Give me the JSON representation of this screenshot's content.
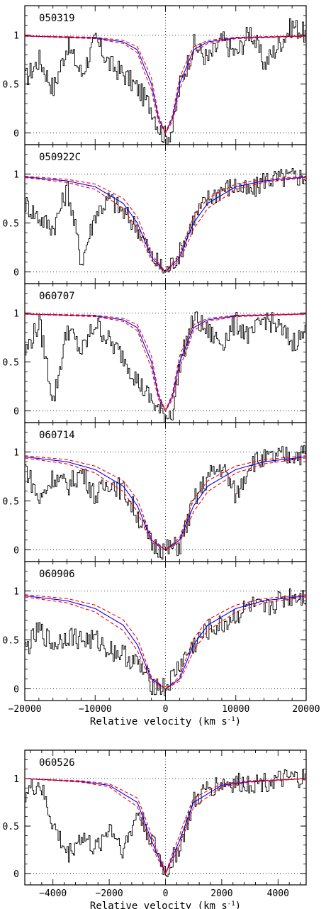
{
  "colors": {
    "data": "#000000",
    "fit": "#0000ff",
    "err": "#ff0000",
    "guide": "#000000"
  },
  "chart_data": [
    {
      "type": "line",
      "title": "050319",
      "xlabel": "",
      "ylabel": "",
      "xlim": [
        -20000,
        20000
      ],
      "ylim": [
        -0.12,
        1.3
      ],
      "xticks": [],
      "yticks": [
        0,
        0.5,
        1
      ],
      "x_tick_labels": [],
      "y_tick_labels": [
        "0",
        "0.5",
        "1"
      ],
      "grid": false,
      "series": [
        {
          "role": "data",
          "x": [
            -20000,
            -18000,
            -16000,
            -14000,
            -12000,
            -10000,
            -8000,
            -6000,
            -4000,
            -2000,
            -1000,
            0,
            1000,
            2000,
            4000,
            6000,
            8000,
            10000,
            12000,
            14000,
            16000,
            18000,
            20000
          ],
          "y": [
            0.55,
            0.75,
            0.45,
            0.9,
            0.6,
            0.95,
            0.7,
            0.6,
            0.45,
            0.25,
            0.05,
            -0.05,
            0.05,
            0.5,
            0.9,
            0.75,
            0.95,
            0.8,
            1.05,
            0.7,
            0.9,
            1.1,
            1.0
          ]
        },
        {
          "role": "fit",
          "x": [
            -20000,
            -10000,
            -6000,
            -4000,
            -2000,
            -1000,
            0,
            1000,
            2000,
            4000,
            6000,
            10000,
            20000
          ],
          "y": [
            0.99,
            0.97,
            0.93,
            0.85,
            0.5,
            0.15,
            0.0,
            0.15,
            0.5,
            0.85,
            0.93,
            0.97,
            0.99
          ]
        }
      ]
    },
    {
      "type": "line",
      "title": "050922C",
      "xlabel": "",
      "ylabel": "",
      "xlim": [
        -20000,
        20000
      ],
      "ylim": [
        -0.12,
        1.3
      ],
      "xticks": [],
      "yticks": [
        0,
        0.5,
        1
      ],
      "x_tick_labels": [],
      "y_tick_labels": [
        "0",
        "0.5",
        "1"
      ],
      "grid": false,
      "series": [
        {
          "role": "data",
          "x": [
            -20000,
            -18000,
            -16000,
            -14000,
            -12000,
            -10000,
            -8000,
            -6000,
            -4000,
            -2000,
            0,
            2000,
            4000,
            6000,
            8000,
            10000,
            12000,
            14000,
            16000,
            18000,
            20000
          ],
          "y": [
            0.7,
            0.55,
            0.45,
            0.85,
            0.1,
            0.6,
            0.75,
            0.6,
            0.45,
            0.15,
            0.0,
            0.2,
            0.55,
            0.75,
            0.85,
            0.88,
            0.8,
            0.95,
            0.95,
            0.97,
            0.98
          ]
        },
        {
          "role": "fit",
          "x": [
            -20000,
            -14000,
            -10000,
            -6000,
            -4000,
            -2000,
            0,
            2000,
            4000,
            6000,
            10000,
            14000,
            20000
          ],
          "y": [
            0.97,
            0.93,
            0.87,
            0.7,
            0.5,
            0.15,
            0.0,
            0.15,
            0.5,
            0.7,
            0.87,
            0.93,
            0.97
          ]
        }
      ]
    },
    {
      "type": "line",
      "title": "060707",
      "xlabel": "",
      "ylabel": "",
      "xlim": [
        -20000,
        20000
      ],
      "ylim": [
        -0.12,
        1.3
      ],
      "xticks": [],
      "yticks": [
        0,
        0.5,
        1
      ],
      "x_tick_labels": [],
      "y_tick_labels": [
        "0",
        "0.5",
        "1"
      ],
      "grid": false,
      "series": [
        {
          "role": "data",
          "x": [
            -20000,
            -18000,
            -16000,
            -14000,
            -12000,
            -10000,
            -8000,
            -6000,
            -4000,
            -2000,
            -1000,
            0,
            1000,
            2000,
            4000,
            6000,
            8000,
            10000,
            12000,
            14000,
            16000,
            18000,
            20000
          ],
          "y": [
            0.6,
            0.9,
            0.1,
            0.85,
            0.6,
            0.9,
            0.7,
            0.55,
            0.3,
            0.1,
            0.0,
            -0.05,
            0.0,
            0.5,
            0.95,
            0.8,
            0.7,
            0.9,
            0.75,
            0.95,
            0.85,
            0.7,
            0.8
          ]
        },
        {
          "role": "fit",
          "x": [
            -20000,
            -10000,
            -6000,
            -4000,
            -2000,
            -1000,
            0,
            1000,
            2000,
            4000,
            6000,
            10000,
            20000
          ],
          "y": [
            0.99,
            0.97,
            0.93,
            0.85,
            0.5,
            0.15,
            0.0,
            0.15,
            0.5,
            0.85,
            0.93,
            0.97,
            0.99
          ]
        }
      ]
    },
    {
      "type": "line",
      "title": "060714",
      "xlabel": "",
      "ylabel": "",
      "xlim": [
        -20000,
        20000
      ],
      "ylim": [
        -0.12,
        1.3
      ],
      "xticks": [],
      "yticks": [
        0,
        0.5,
        1
      ],
      "x_tick_labels": [],
      "y_tick_labels": [
        "0",
        "0.5",
        "1"
      ],
      "grid": false,
      "series": [
        {
          "role": "data",
          "x": [
            -20000,
            -18000,
            -16000,
            -14000,
            -12000,
            -10000,
            -8000,
            -6000,
            -4000,
            -2000,
            0,
            2000,
            4000,
            6000,
            8000,
            10000,
            12000,
            14000,
            16000,
            18000,
            20000
          ],
          "y": [
            0.85,
            0.5,
            0.75,
            0.65,
            0.8,
            0.55,
            0.7,
            0.6,
            0.35,
            0.05,
            0.0,
            0.05,
            0.5,
            0.75,
            0.85,
            0.55,
            0.9,
            0.92,
            0.95,
            0.97,
            0.98
          ]
        },
        {
          "role": "fit",
          "x": [
            -20000,
            -14000,
            -10000,
            -6000,
            -4000,
            -2000,
            0,
            2000,
            4000,
            6000,
            10000,
            14000,
            20000
          ],
          "y": [
            0.95,
            0.9,
            0.82,
            0.65,
            0.45,
            0.1,
            0.0,
            0.1,
            0.45,
            0.65,
            0.82,
            0.9,
            0.95
          ]
        }
      ]
    },
    {
      "type": "line",
      "title": "060906",
      "xlabel": "Relative velocity (km s^-1)",
      "ylabel": "",
      "xlim": [
        -20000,
        20000
      ],
      "ylim": [
        -0.12,
        1.3
      ],
      "xticks": [
        -20000,
        -10000,
        0,
        10000,
        20000
      ],
      "yticks": [
        0,
        0.5,
        1
      ],
      "x_tick_labels": [
        "−20000",
        "−10000",
        "0",
        "10000",
        "20000"
      ],
      "y_tick_labels": [
        "0",
        "0.5",
        "1"
      ],
      "grid": false,
      "series": [
        {
          "role": "data",
          "x": [
            -20000,
            -18000,
            -16000,
            -14000,
            -12000,
            -10000,
            -8000,
            -6000,
            -4000,
            -2000,
            0,
            2000,
            4000,
            6000,
            8000,
            10000,
            12000,
            14000,
            16000,
            18000,
            20000
          ],
          "y": [
            0.4,
            0.6,
            0.45,
            0.55,
            0.5,
            0.5,
            0.4,
            0.35,
            0.25,
            0.05,
            0.0,
            0.25,
            0.45,
            0.6,
            0.65,
            0.75,
            0.85,
            0.8,
            0.9,
            0.95,
            0.95
          ]
        },
        {
          "role": "fit",
          "x": [
            -20000,
            -14000,
            -10000,
            -6000,
            -4000,
            -2000,
            0,
            2000,
            4000,
            6000,
            10000,
            14000,
            20000
          ],
          "y": [
            0.95,
            0.9,
            0.82,
            0.65,
            0.45,
            0.1,
            0.0,
            0.1,
            0.45,
            0.65,
            0.82,
            0.9,
            0.95
          ]
        }
      ]
    },
    {
      "type": "line",
      "title": "060526",
      "xlabel": "Relative velocity (km s^-1)",
      "ylabel": "",
      "xlim": [
        -5000,
        5000
      ],
      "ylim": [
        -0.12,
        1.3
      ],
      "xticks": [
        -4000,
        -2000,
        0,
        2000,
        4000
      ],
      "yticks": [
        0,
        0.5,
        1
      ],
      "x_tick_labels": [
        "−4000",
        "−2000",
        "0",
        "2000",
        "4000"
      ],
      "y_tick_labels": [
        "0",
        "0.5",
        "1"
      ],
      "grid": false,
      "series": [
        {
          "role": "data",
          "x": [
            -5000,
            -4500,
            -4000,
            -3500,
            -3000,
            -2500,
            -2000,
            -1500,
            -1000,
            -500,
            0,
            500,
            1000,
            1500,
            2000,
            2500,
            3000,
            3500,
            4000,
            4500,
            5000
          ],
          "y": [
            0.85,
            0.95,
            0.5,
            0.2,
            0.4,
            0.25,
            0.5,
            0.25,
            0.65,
            0.35,
            0.0,
            0.3,
            0.75,
            0.9,
            0.95,
            0.95,
            0.95,
            0.97,
            0.98,
            1.0,
            1.0
          ]
        },
        {
          "role": "fit",
          "x": [
            -5000,
            -3000,
            -2000,
            -1000,
            -500,
            0,
            500,
            1000,
            2000,
            3000,
            5000
          ],
          "y": [
            1.0,
            0.97,
            0.93,
            0.75,
            0.35,
            0.0,
            0.35,
            0.75,
            0.93,
            0.97,
            1.0
          ]
        }
      ]
    }
  ]
}
